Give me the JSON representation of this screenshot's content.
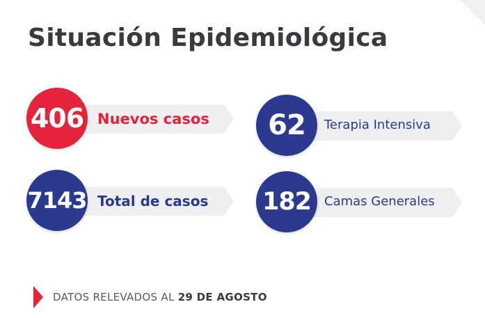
{
  "title": "Situación Epidemiológica",
  "colors": {
    "red": "#e3243a",
    "blue": "#2b3a8f",
    "text": "#3a3a3e"
  },
  "stats": [
    {
      "value": "406",
      "label": "Nuevos casos",
      "color": "red"
    },
    {
      "value": "62",
      "label": "Terapia Intensiva",
      "color": "blue"
    },
    {
      "value": "7143",
      "label": "Total de casos",
      "color": "blue"
    },
    {
      "value": "182",
      "label": "Camas Generales",
      "color": "blue"
    }
  ],
  "footer": {
    "prefix": "DATOS RELEVADOS AL ",
    "date": "29 DE AGOSTO"
  }
}
